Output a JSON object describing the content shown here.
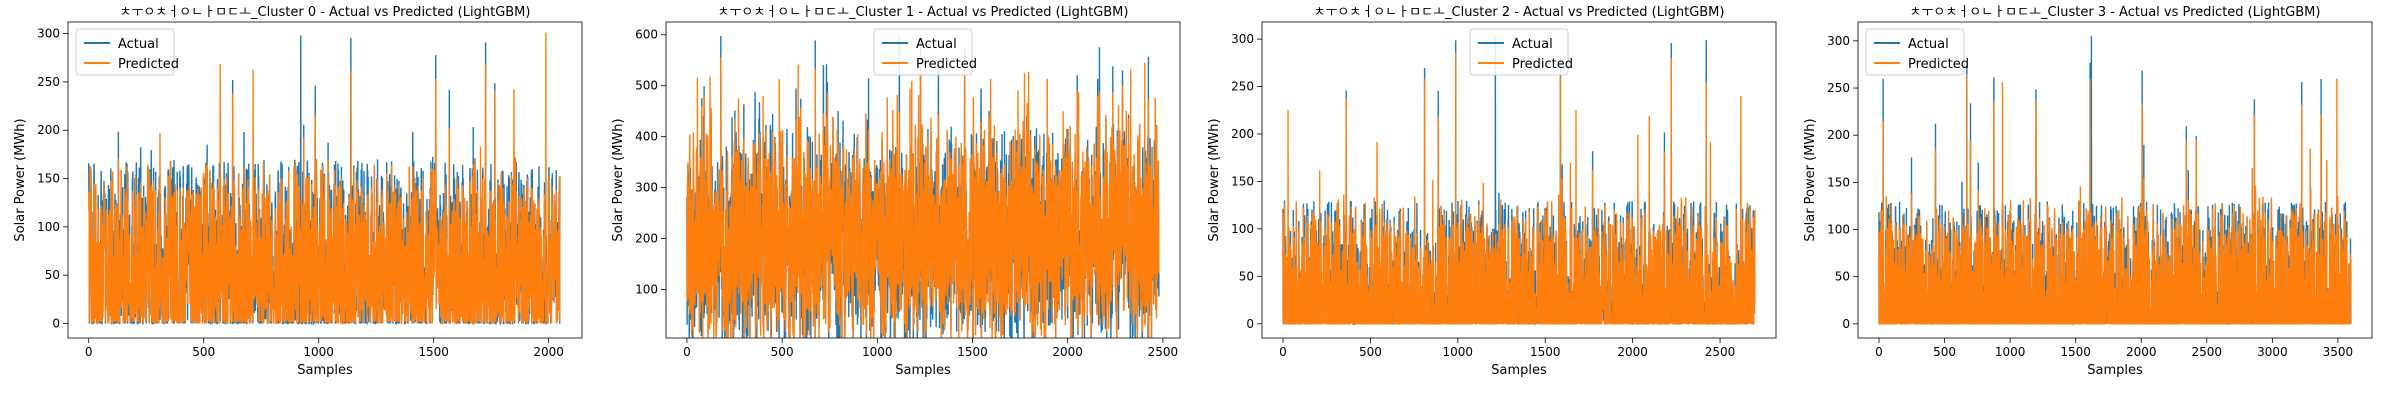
{
  "colors": {
    "actual": "#1f77b4",
    "predicted": "#ff7f0e"
  },
  "chart_data": [
    {
      "type": "line",
      "title": "ㅊㅜㅇㅊㅓㅇㄴㅏㅁㄷㅗ_Cluster 0 - Actual vs Predicted (LightGBM)",
      "xlabel": "Samples",
      "ylabel": "Solar Power (MWh)",
      "n_samples": 2050,
      "xlim": [
        -90,
        2145
      ],
      "ylim": [
        -15,
        312
      ],
      "xticks": [
        0,
        500,
        1000,
        1500,
        2000
      ],
      "yticks": [
        0,
        50,
        100,
        150,
        200,
        250,
        300
      ],
      "legend_position": "upper-left",
      "series": [
        {
          "name": "Actual",
          "baseline": 0,
          "typical_max": 170,
          "peak": 298
        },
        {
          "name": "Predicted",
          "baseline": 2,
          "typical_max": 160,
          "peak": 301
        }
      ]
    },
    {
      "type": "line",
      "title": "ㅊㅜㅇㅊㅓㅇㄴㅏㅁㄷㅗ_Cluster 1 - Actual vs Predicted (LightGBM)",
      "xlabel": "Samples",
      "ylabel": "Solar Power (MWh)",
      "n_samples": 2480,
      "xlim": [
        -110,
        2590
      ],
      "ylim": [
        5,
        625
      ],
      "xticks": [
        0,
        500,
        1000,
        1500,
        2000,
        2500
      ],
      "yticks": [
        100,
        200,
        300,
        400,
        500,
        600
      ],
      "legend_position": "upper-center",
      "series": [
        {
          "name": "Actual",
          "baseline": 200,
          "typical_max": 470,
          "peak": 598
        },
        {
          "name": "Predicted",
          "baseline": 200,
          "typical_max": 440,
          "peak": 545
        }
      ]
    },
    {
      "type": "line",
      "title": "ㅊㅜㅇㅊㅓㅇㄴㅏㅁㄷㅗ_Cluster 2 - Actual vs Predicted (LightGBM)",
      "xlabel": "Samples",
      "ylabel": "Solar Power (MWh)",
      "n_samples": 2700,
      "xlim": [
        -120,
        2820
      ],
      "ylim": [
        -15,
        318
      ],
      "xticks": [
        0,
        500,
        1000,
        1500,
        2000,
        2500
      ],
      "yticks": [
        0,
        50,
        100,
        150,
        200,
        250,
        300
      ],
      "legend_position": "upper-center",
      "series": [
        {
          "name": "Actual",
          "baseline": 0,
          "typical_max": 130,
          "peak": 303
        },
        {
          "name": "Predicted",
          "baseline": 0,
          "typical_max": 120,
          "peak": 240
        }
      ]
    },
    {
      "type": "line",
      "title": "ㅊㅜㅇㅊㅓㅇㄴㅏㅁㄷㅗ_Cluster 3 - Actual vs Predicted (LightGBM)",
      "xlabel": "Samples",
      "ylabel": "Solar Power (MWh)",
      "n_samples": 3600,
      "xlim": [
        -160,
        3760
      ],
      "ylim": [
        -15,
        320
      ],
      "xticks": [
        0,
        500,
        1000,
        1500,
        2000,
        2500,
        3000,
        3500
      ],
      "yticks": [
        0,
        50,
        100,
        150,
        200,
        250,
        300
      ],
      "legend_position": "upper-left",
      "series": [
        {
          "name": "Actual",
          "baseline": 0,
          "typical_max": 130,
          "peak": 305
        },
        {
          "name": "Predicted",
          "baseline": 0,
          "typical_max": 120,
          "peak": 260
        }
      ]
    }
  ]
}
